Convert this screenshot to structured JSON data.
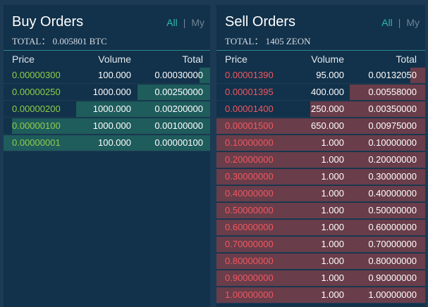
{
  "buy": {
    "title": "Buy Orders",
    "total": "TOTAL：  0.005801 BTC",
    "filter_all": "All",
    "filter_sep": "|",
    "filter_my": "My",
    "columns": {
      "price": "Price",
      "volume": "Volume",
      "total": "Total"
    },
    "rows": [
      {
        "price": "0.00000300",
        "volume": "100.000",
        "total": "0.00030000",
        "depth": 0.05
      },
      {
        "price": "0.00000250",
        "volume": "1000.000",
        "total": "0.00250000",
        "depth": 0.35
      },
      {
        "price": "0.00000200",
        "volume": "1000.000",
        "total": "0.00200000",
        "depth": 0.65
      },
      {
        "price": "0.00000100",
        "volume": "1000.000",
        "total": "0.00100000",
        "depth": 0.96
      },
      {
        "price": "0.00000001",
        "volume": "100.000",
        "total": "0.00000100",
        "depth": 1.0
      }
    ]
  },
  "sell": {
    "title": "Sell Orders",
    "total": "TOTAL：  1405 ZEON",
    "filter_all": "All",
    "filter_sep": "|",
    "filter_my": "My",
    "columns": {
      "price": "Price",
      "volume": "Volume",
      "total": "Total"
    },
    "rows": [
      {
        "price": "0.00001390",
        "volume": "95.000",
        "total": "0.00132050",
        "depth": 0.07
      },
      {
        "price": "0.00001395",
        "volume": "400.000",
        "total": "0.00558000",
        "depth": 0.36
      },
      {
        "price": "0.00001400",
        "volume": "250.000",
        "total": "0.00350000",
        "depth": 0.55
      },
      {
        "price": "0.00001500",
        "volume": "650.000",
        "total": "0.00975000",
        "depth": 1.0
      },
      {
        "price": "0.10000000",
        "volume": "1.000",
        "total": "0.10000000",
        "depth": 1.0
      },
      {
        "price": "0.20000000",
        "volume": "1.000",
        "total": "0.20000000",
        "depth": 1.0
      },
      {
        "price": "0.30000000",
        "volume": "1.000",
        "total": "0.30000000",
        "depth": 1.0
      },
      {
        "price": "0.40000000",
        "volume": "1.000",
        "total": "0.40000000",
        "depth": 1.0
      },
      {
        "price": "0.50000000",
        "volume": "1.000",
        "total": "0.50000000",
        "depth": 1.0
      },
      {
        "price": "0.60000000",
        "volume": "1.000",
        "total": "0.60000000",
        "depth": 1.0
      },
      {
        "price": "0.70000000",
        "volume": "1.000",
        "total": "0.70000000",
        "depth": 1.0
      },
      {
        "price": "0.80000000",
        "volume": "1.000",
        "total": "0.80000000",
        "depth": 1.0
      },
      {
        "price": "0.90000000",
        "volume": "1.000",
        "total": "0.90000000",
        "depth": 1.0
      },
      {
        "price": "1.00000000",
        "volume": "1.000",
        "total": "1.00000000",
        "depth": 1.0
      }
    ]
  },
  "colors": {
    "background": "#1c3a54",
    "panel": "#12314a",
    "accent": "#2fb8ac",
    "buy_price": "#8fcf48",
    "sell_price": "#f2575f",
    "buy_depth": "#1f5c5c",
    "sell_depth": "#6a3d4a"
  }
}
